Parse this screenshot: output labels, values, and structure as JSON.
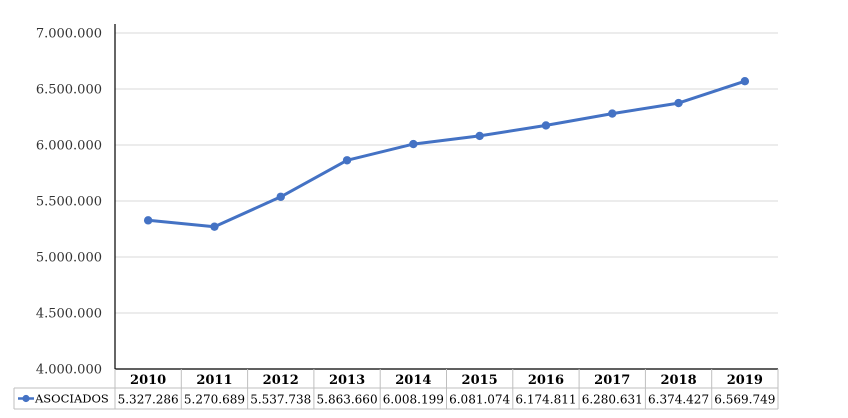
{
  "chart_data": {
    "type": "line",
    "categories": [
      "2010",
      "2011",
      "2012",
      "2013",
      "2014",
      "2015",
      "2016",
      "2017",
      "2018",
      "2019"
    ],
    "series": [
      {
        "name": "ASOCIADOS",
        "values": [
          5327286,
          5270689,
          5537738,
          5863660,
          6008199,
          6081074,
          6174811,
          6280631,
          6374427,
          6569749
        ],
        "labels": [
          "5.327.286",
          "5.270.689",
          "5.537.738",
          "5.863.660",
          "6.008.199",
          "6.081.074",
          "6.174.811",
          "6.280.631",
          "6.374.427",
          "6.569.749"
        ]
      }
    ],
    "yticks": [
      4000000,
      4500000,
      5000000,
      5500000,
      6000000,
      6500000,
      7000000
    ],
    "ytick_labels": [
      "4.000.000",
      "4.500.000",
      "5.000.000",
      "5.500.000",
      "6.000.000",
      "6.500.000",
      "7.000.000"
    ],
    "ylim": [
      4000000,
      7000000
    ],
    "grid": true,
    "legend": "data-table-left",
    "data_table": true,
    "colors": {
      "series": "#4472C4",
      "grid": "#D9D9D9",
      "axis": "#000000",
      "table_border": "#BFBFBF"
    }
  }
}
